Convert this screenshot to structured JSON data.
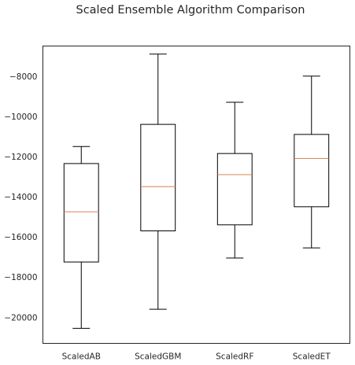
{
  "chart_data": {
    "type": "box",
    "title": "Scaled Ensemble Algorithm Comparison",
    "xlabel": "",
    "ylabel": "",
    "ylim": [
      -21300,
      -6500
    ],
    "yticks": [
      -20000,
      -18000,
      -16000,
      -14000,
      -12000,
      -10000,
      -8000
    ],
    "categories": [
      "ScaledAB",
      "ScaledGBM",
      "ScaledRF",
      "ScaledET"
    ],
    "boxes": [
      {
        "whisker_low": -20550,
        "q1": -17250,
        "median": -14750,
        "q3": -12350,
        "whisker_high": -11500
      },
      {
        "whisker_low": -19600,
        "q1": -15700,
        "median": -13500,
        "q3": -10400,
        "whisker_high": -6900
      },
      {
        "whisker_low": -17050,
        "q1": -15400,
        "median": -12900,
        "q3": -11850,
        "whisker_high": -9300
      },
      {
        "whisker_low": -16550,
        "q1": -14500,
        "median": -12100,
        "q3": -10900,
        "whisker_high": -8000
      }
    ],
    "grid": false,
    "box_color": "#000000",
    "median_color": "#dd8452"
  }
}
